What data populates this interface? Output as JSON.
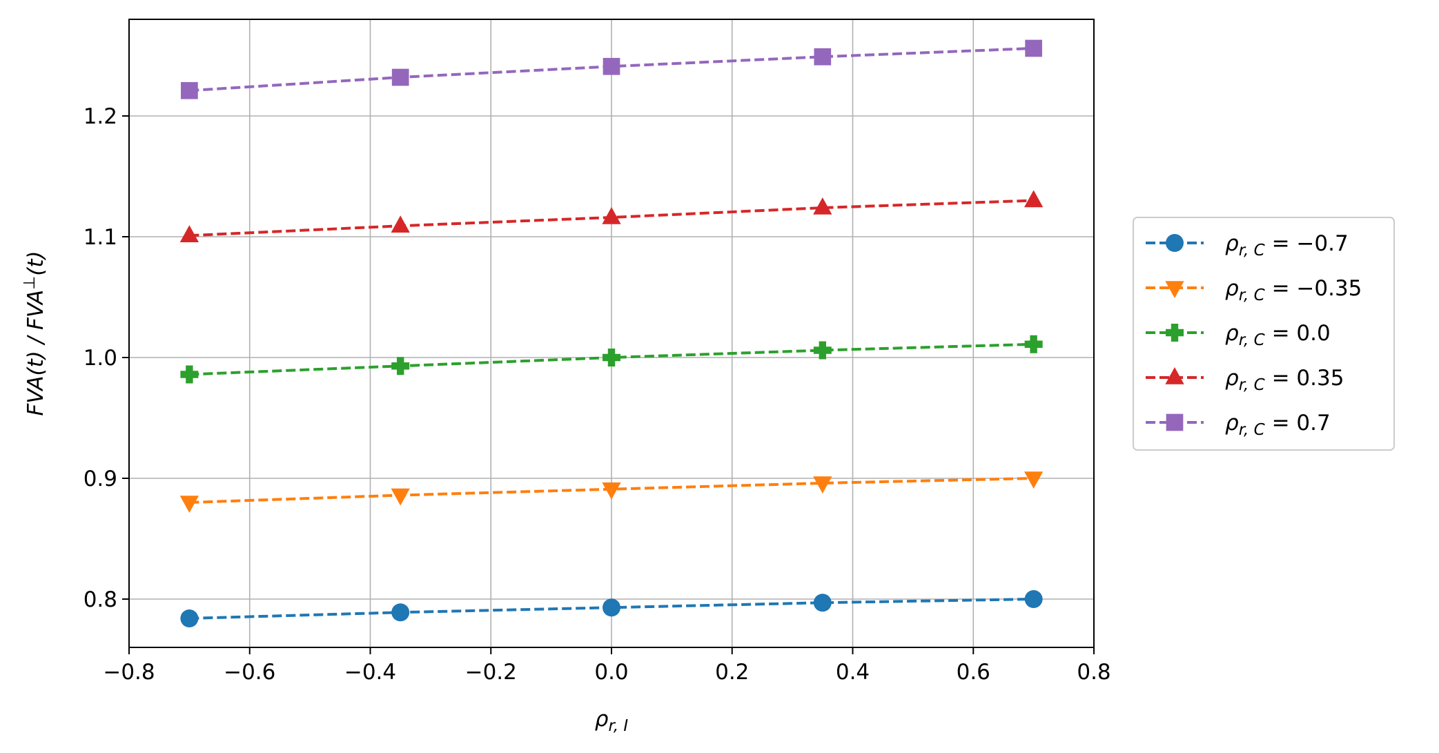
{
  "chart_data": {
    "type": "line",
    "x": [
      -0.7,
      -0.35,
      0.0,
      0.35,
      0.7
    ],
    "xlim": [
      -0.8,
      0.8
    ],
    "ylim": [
      0.76,
      1.28
    ],
    "xticks": [
      "−0.8",
      "−0.6",
      "−0.4",
      "−0.2",
      "0.0",
      "0.2",
      "0.4",
      "0.6",
      "0.8"
    ],
    "yticks": [
      "0.8",
      "0.9",
      "1.0",
      "1.1",
      "1.2"
    ],
    "grid": true,
    "legend_position": "center-right-outside",
    "xlabel": {
      "base": "ρ",
      "sub": "r, I"
    },
    "ylabel": {
      "part1": "FVA(t) / FVA",
      "sup": "⊥",
      "part2": "(t)"
    },
    "series": [
      {
        "name": {
          "base": "ρ",
          "sub": "r, C",
          "rest": " = −0.7"
        },
        "color": "#1f77b4",
        "marker": "circle",
        "values": [
          0.784,
          0.789,
          0.793,
          0.797,
          0.8
        ]
      },
      {
        "name": {
          "base": "ρ",
          "sub": "r, C",
          "rest": " = −0.35"
        },
        "color": "#ff7f0e",
        "marker": "triangle-down",
        "values": [
          0.88,
          0.886,
          0.891,
          0.896,
          0.9
        ]
      },
      {
        "name": {
          "base": "ρ",
          "sub": "r, C",
          "rest": " = 0.0"
        },
        "color": "#2ca02c",
        "marker": "plus-filled",
        "values": [
          0.986,
          0.993,
          1.0,
          1.006,
          1.011
        ]
      },
      {
        "name": {
          "base": "ρ",
          "sub": "r, C",
          "rest": " = 0.35"
        },
        "color": "#d62728",
        "marker": "triangle-up",
        "values": [
          1.101,
          1.109,
          1.116,
          1.124,
          1.13
        ]
      },
      {
        "name": {
          "base": "ρ",
          "sub": "r, C",
          "rest": " = 0.7"
        },
        "color": "#9467bd",
        "marker": "square",
        "values": [
          1.221,
          1.232,
          1.241,
          1.249,
          1.256
        ]
      }
    ]
  }
}
